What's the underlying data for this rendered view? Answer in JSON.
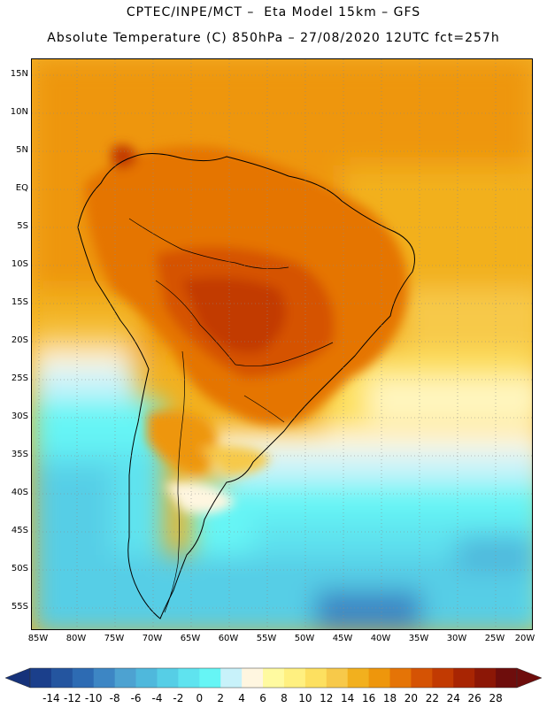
{
  "header": {
    "line1": "CPTEC/INPE/MCT –  Eta Model 15km – GFS",
    "line2": "Absolute Temperature (C) 850hPa – 27/08/2020 12UTC fct=257h"
  },
  "map": {
    "lat_labels": [
      "15N",
      "10N",
      "5N",
      "EQ",
      "5S",
      "10S",
      "15S",
      "20S",
      "25S",
      "30S",
      "35S",
      "40S",
      "45S",
      "50S",
      "55S"
    ],
    "lon_labels": [
      "85W",
      "80W",
      "75W",
      "70W",
      "65W",
      "60W",
      "55W",
      "50W",
      "45W",
      "40W",
      "35W",
      "30W",
      "25W",
      "20W"
    ]
  },
  "colorbar": {
    "labels": [
      "-14",
      "-12",
      "-10",
      "-8",
      "-6",
      "-4",
      "-2",
      "0",
      "2",
      "4",
      "6",
      "8",
      "10",
      "12",
      "14",
      "16",
      "18",
      "20",
      "22",
      "24",
      "26",
      "28"
    ],
    "colors": [
      "#1b3f8b",
      "#24559f",
      "#2d6bb3",
      "#3d86c4",
      "#4da2d1",
      "#4fb8dc",
      "#56cee6",
      "#5fe3ef",
      "#66f5f5",
      "#c8f2fa",
      "#fff6e0",
      "#fffaa0",
      "#fff080",
      "#fde060",
      "#f7c94a",
      "#f2b01e",
      "#ee960c",
      "#e57406",
      "#d55304",
      "#c23a02",
      "#a82503",
      "#8c1706",
      "#6e0d0c"
    ]
  }
}
